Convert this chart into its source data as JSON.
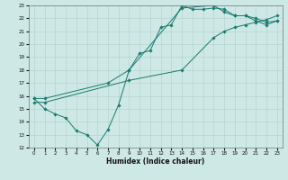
{
  "xlabel": "Humidex (Indice chaleur)",
  "xlim": [
    -0.5,
    23.5
  ],
  "ylim": [
    12,
    23
  ],
  "xticks": [
    0,
    1,
    2,
    3,
    4,
    5,
    6,
    7,
    8,
    9,
    10,
    11,
    12,
    13,
    14,
    15,
    16,
    17,
    18,
    19,
    20,
    21,
    22,
    23
  ],
  "yticks": [
    12,
    13,
    14,
    15,
    16,
    17,
    18,
    19,
    20,
    21,
    22,
    23
  ],
  "bg_color": "#cde8e5",
  "grid_color": "#b8d4d0",
  "line_color": "#1a7a6e",
  "line1_x": [
    0,
    1,
    2,
    3,
    4,
    5,
    6,
    7,
    8,
    9,
    10,
    11,
    12,
    13,
    14,
    15,
    16,
    17,
    18,
    19,
    20,
    21,
    22,
    23
  ],
  "line1_y": [
    15.8,
    15.0,
    14.6,
    14.3,
    13.3,
    13.0,
    12.2,
    13.4,
    15.3,
    18.0,
    19.3,
    19.5,
    21.3,
    21.5,
    23.0,
    22.7,
    22.7,
    22.8,
    22.7,
    22.2,
    22.2,
    22.0,
    21.7,
    21.8
  ],
  "line2_x": [
    0,
    1,
    7,
    9,
    14,
    17,
    18,
    19,
    20,
    21,
    22,
    23
  ],
  "line2_y": [
    15.8,
    15.8,
    17.0,
    18.0,
    22.8,
    23.0,
    22.5,
    22.2,
    22.2,
    21.8,
    21.5,
    21.8
  ],
  "line3_x": [
    0,
    1,
    9,
    14,
    17,
    18,
    19,
    20,
    21,
    22,
    23
  ],
  "line3_y": [
    15.5,
    15.5,
    17.2,
    18.0,
    20.5,
    21.0,
    21.3,
    21.5,
    21.7,
    21.9,
    22.2
  ]
}
